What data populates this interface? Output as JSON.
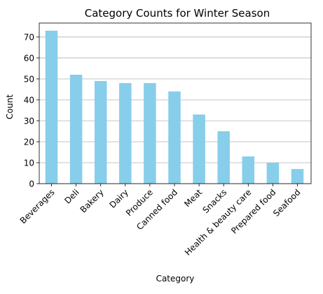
{
  "chart_data": {
    "type": "bar",
    "title": "Category Counts for Winter Season",
    "xlabel": "Category",
    "ylabel": "Count",
    "categories": [
      "Beverages",
      "Deli",
      "Bakery",
      "Dairy",
      "Produce",
      "Canned food",
      "Meat",
      "Snacks",
      "Health & beauty care",
      "Prepared food",
      "Seafood"
    ],
    "values": [
      73,
      52,
      49,
      48,
      48,
      44,
      33,
      25,
      13,
      10,
      7
    ],
    "ylim": [
      0,
      76.65
    ],
    "yticks": [
      0,
      10,
      20,
      30,
      40,
      50,
      60,
      70
    ],
    "grid": "horizontal",
    "bar_color": "#87ceeb",
    "grid_color": "#b0b0b0"
  }
}
